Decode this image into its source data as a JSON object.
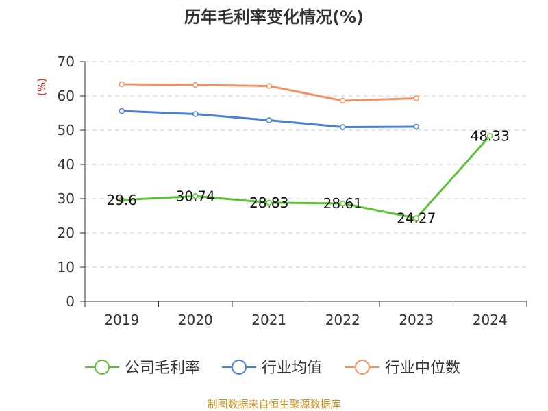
{
  "chart_data": {
    "type": "line",
    "title": "历年毛利率变化情况(%)",
    "ylabel": "(%)",
    "xlabel": "",
    "categories": [
      "2019",
      "2020",
      "2021",
      "2022",
      "2023",
      "2024"
    ],
    "ylim": [
      0,
      70
    ],
    "yticks": [
      "0",
      "10",
      "20",
      "30",
      "40",
      "50",
      "60",
      "70"
    ],
    "grid": true,
    "legend_position": "bottom",
    "series": [
      {
        "name": "公司毛利率",
        "color": "#5bc236",
        "values": [
          29.6,
          30.74,
          28.83,
          28.61,
          24.27,
          48.33
        ],
        "labels": [
          "29.6",
          "30.74",
          "28.83",
          "28.61",
          "24.27",
          "48.33"
        ]
      },
      {
        "name": "行业均值",
        "color": "#4a7fd6",
        "values": [
          55.6,
          54.7,
          52.9,
          50.9,
          51.0,
          null
        ]
      },
      {
        "name": "行业中位数",
        "color": "#f59160",
        "values": [
          63.4,
          63.2,
          62.9,
          58.6,
          59.3,
          null
        ]
      }
    ]
  },
  "ylabel_color": "#e02020",
  "source_text": "制图数据来自恒生聚源数据库",
  "source_color": "#c8901e"
}
